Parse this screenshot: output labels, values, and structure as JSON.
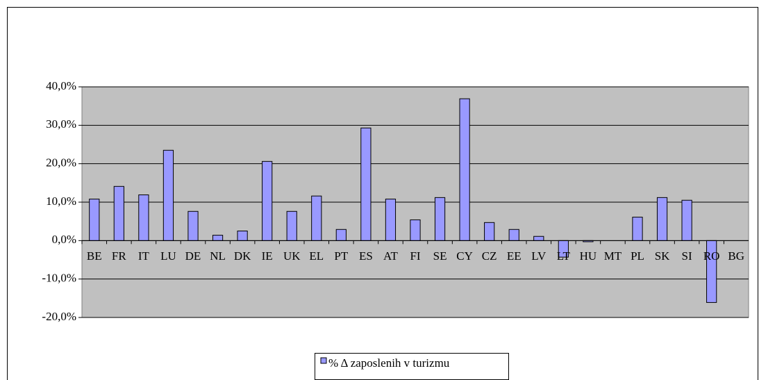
{
  "chart_data": {
    "type": "bar",
    "categories": [
      "BE",
      "FR",
      "IT",
      "LU",
      "DE",
      "NL",
      "DK",
      "IE",
      "UK",
      "EL",
      "PT",
      "ES",
      "AT",
      "FI",
      "SE",
      "CY",
      "CZ",
      "EE",
      "LV",
      "LT",
      "HU",
      "MT",
      "PL",
      "SK",
      "SI",
      "RO",
      "BG"
    ],
    "series": [
      {
        "name": "% Δ zaposlenih v turizmu",
        "color": "#9999ff",
        "values": [
          10.8,
          14.1,
          11.9,
          23.5,
          7.6,
          1.4,
          2.5,
          20.6,
          7.6,
          11.6,
          2.9,
          29.3,
          10.8,
          5.4,
          11.2,
          36.9,
          4.7,
          2.9,
          1.1,
          -4.3,
          -0.3,
          0,
          6.1,
          11.2,
          10.5,
          -16.1,
          0
        ]
      }
    ],
    "ylim": [
      -20,
      40
    ],
    "yticks": [
      {
        "value": -20,
        "label": "-20,0%"
      },
      {
        "value": -10,
        "label": "-10,0%"
      },
      {
        "value": 0,
        "label": "0,0%"
      },
      {
        "value": 10,
        "label": "10,0%"
      },
      {
        "value": 20,
        "label": "20,0%"
      },
      {
        "value": 30,
        "label": "30,0%"
      },
      {
        "value": 40,
        "label": "40,0%"
      }
    ],
    "grid": true,
    "plot_background": "#c0c0c0",
    "legend": "bottom"
  }
}
